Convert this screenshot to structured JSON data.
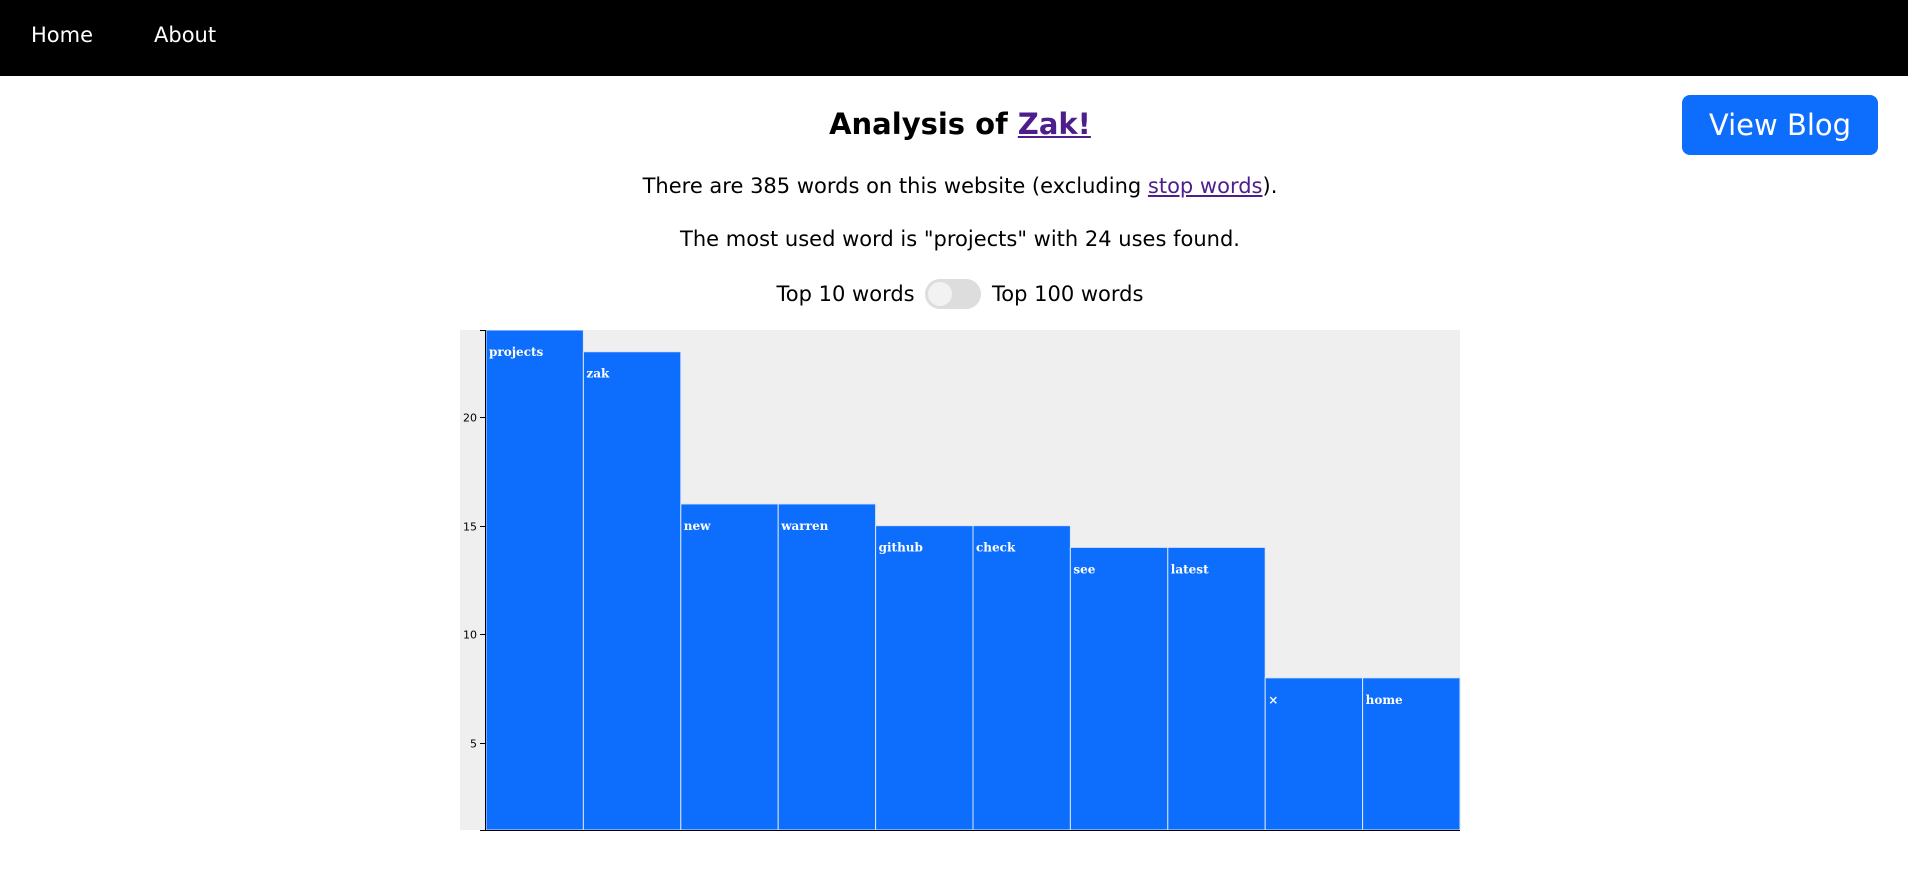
{
  "nav": {
    "home_label": "Home",
    "about_label": "About"
  },
  "actions": {
    "view_blog_label": "View Blog"
  },
  "heading": {
    "prefix": "Analysis of ",
    "site_link": "Zak!"
  },
  "summary": {
    "count_prefix": "There are 385 words on this website (excluding ",
    "stop_words_link": "stop words",
    "count_suffix": ").",
    "most_used": "The most used word is \"projects\" with 24 uses found."
  },
  "toggle": {
    "left_label": "Top 10 words",
    "right_label": "Top 100 words",
    "state": "off"
  },
  "colors": {
    "nav_bg": "#000000",
    "accent": "#0d6efd",
    "link": "#4d1f8c",
    "chart_bg": "#efefef",
    "bar_text": "#ffffff"
  },
  "chart_data": {
    "type": "bar",
    "title": "",
    "xlabel": "",
    "ylabel": "",
    "categories": [
      "projects",
      "zak",
      "new",
      "warren",
      "github",
      "check",
      "see",
      "latest",
      "×",
      "home"
    ],
    "values": [
      24,
      23,
      16,
      16,
      15,
      15,
      14,
      14,
      8,
      8
    ],
    "ylim": [
      1,
      24
    ],
    "yticks": [
      5,
      10,
      15,
      20
    ],
    "grid": false,
    "legend": "none"
  }
}
